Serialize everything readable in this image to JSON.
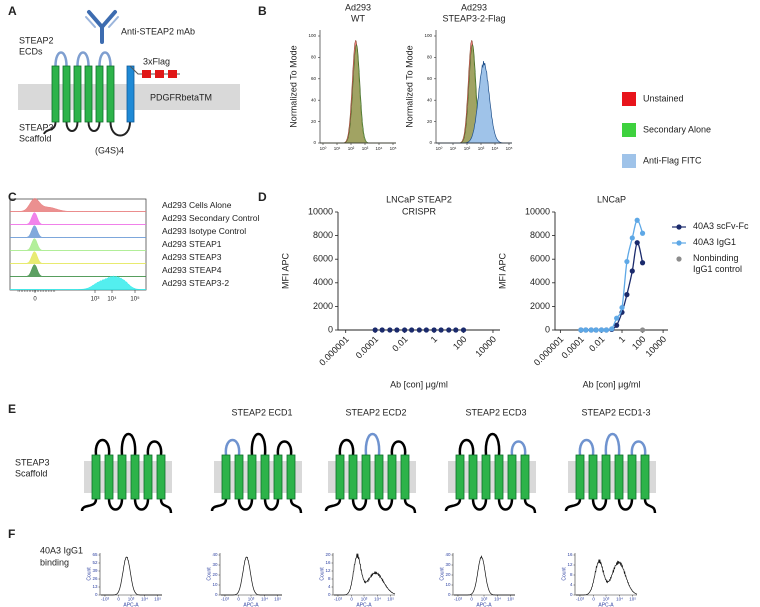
{
  "panels": {
    "A": {
      "letter": "A",
      "antibody": "Anti-STEAP2 mAb",
      "ecds": [
        "STEAP2",
        "ECDs"
      ],
      "flag": "3xFlag",
      "tm": "PDGFRbetaTM",
      "linker": "(G4S)4",
      "scaffold": [
        "STEAP3",
        "Scaffold"
      ]
    },
    "B": {
      "letter": "B",
      "ylabel": "Normalized To Mode",
      "yticks": [
        0,
        20,
        40,
        60,
        80,
        100
      ],
      "xticks": [
        "10⁰",
        "10¹",
        "10²",
        "10³",
        "10⁴",
        "10⁵"
      ],
      "plots": [
        {
          "title": [
            "Ad293",
            "WT"
          ]
        },
        {
          "title": [
            "Ad293",
            "STEAP3-2-Flag"
          ]
        }
      ],
      "legend": [
        {
          "name": "Unstained",
          "color": "#e8141b"
        },
        {
          "name": "Secondary Alone",
          "color": "#3ed13e"
        },
        {
          "name": "Anti-Flag FITC",
          "color": "#9fc3e9"
        }
      ]
    },
    "C": {
      "letter": "C",
      "xticks": [
        "0",
        "10³",
        "10⁴",
        "10⁵"
      ],
      "rows": [
        {
          "name": "Ad293 Cells Alone",
          "color": "#e87d7d"
        },
        {
          "name": "Ad293 Secondary Control",
          "color": "#ee6fe6"
        },
        {
          "name": "Ad293 Isotype Control",
          "color": "#6b9ad6"
        },
        {
          "name": "Ad293 STEAP1",
          "color": "#a6ec8a"
        },
        {
          "name": "Ad293 STEAP3",
          "color": "#e4e85a"
        },
        {
          "name": "Ad293 STEAP4",
          "color": "#3f8f46"
        },
        {
          "name": "Ad293 STEAP3-2",
          "color": "#35ecec"
        }
      ]
    },
    "D": {
      "letter": "D"
    },
    "E": {
      "letter": "E",
      "scaffold": [
        "STEAP3",
        "Scaffold"
      ],
      "constructs": [
        {
          "ecd_colors": [
            "#000000",
            "#000000",
            "#000000"
          ]
        },
        {
          "title": "STEAP2 ECD1",
          "ecd_colors": [
            "#6f93cf",
            "#000000",
            "#000000"
          ]
        },
        {
          "title": "STEAP2 ECD2",
          "ecd_colors": [
            "#000000",
            "#6f93cf",
            "#000000"
          ]
        },
        {
          "title": "STEAP2 ECD3",
          "ecd_colors": [
            "#000000",
            "#000000",
            "#6f93cf"
          ]
        },
        {
          "title": "STEAP2 ECD1-3",
          "ecd_colors": [
            "#6f93cf",
            "#6f93cf",
            "#6f93cf"
          ]
        }
      ]
    },
    "F": {
      "letter": "F",
      "label": [
        "40A3 IgG1",
        "binding"
      ],
      "ylabel": "Count",
      "xlabel": "APC-A",
      "xticks": [
        "-10³",
        "0",
        "10³",
        "10⁴",
        "10⁵"
      ],
      "plots": [
        {
          "yticks": [
            0,
            13,
            26,
            39,
            52,
            65
          ]
        },
        {
          "yticks": [
            0,
            10,
            20,
            30,
            40
          ]
        },
        {
          "yticks": [
            0,
            4,
            8,
            12,
            16,
            20
          ]
        },
        {
          "yticks": [
            0,
            10,
            20,
            30,
            40
          ]
        },
        {
          "yticks": [
            0,
            4,
            8,
            12,
            16
          ]
        }
      ]
    }
  },
  "chart_data": [
    {
      "type": "scatter",
      "title": [
        "LNCaP STEAP2",
        "CRISPR"
      ],
      "xlabel": "Ab [con] μg/ml",
      "ylabel": "MFI APC",
      "log_x": true,
      "xlim": [
        3e-07,
        30000
      ],
      "xticks": [
        1e-06,
        0.0001,
        0.01,
        1,
        100,
        10000
      ],
      "ylim": [
        0,
        10000
      ],
      "yticks": [
        0,
        2000,
        4000,
        6000,
        8000,
        10000
      ],
      "legend": false,
      "series": [
        {
          "color": "#1a2a6c",
          "fit": false,
          "x": [
            0.0001,
            0.0003,
            0.001,
            0.003,
            0.01,
            0.03,
            0.1,
            0.3,
            1,
            3,
            10,
            30,
            100
          ],
          "values": [
            0,
            0,
            0,
            0,
            0,
            0,
            0,
            0,
            0,
            0,
            0,
            0,
            0
          ]
        }
      ]
    },
    {
      "type": "scatter",
      "title": [
        "LNCaP"
      ],
      "xlabel": "Ab [con] μg/ml",
      "ylabel": "MFI APC",
      "log_x": true,
      "xlim": [
        3e-07,
        30000
      ],
      "xticks": [
        1e-06,
        0.0001,
        0.01,
        1,
        100,
        10000
      ],
      "ylim": [
        0,
        10000
      ],
      "yticks": [
        0,
        2000,
        4000,
        6000,
        8000,
        10000
      ],
      "legend": true,
      "series": [
        {
          "name": "40A3 scFv-Fc",
          "color": "#1a2a6c",
          "fit": true,
          "x": [
            0.0001,
            0.0003,
            0.001,
            0.003,
            0.01,
            0.03,
            0.1,
            0.3,
            1,
            3,
            10,
            30,
            100
          ],
          "values": [
            0,
            0,
            0,
            0,
            0,
            0,
            50,
            400,
            1500,
            3000,
            5000,
            7400,
            5700
          ]
        },
        {
          "name": "40A3 IgG1",
          "color": "#5ea8e6",
          "fit": true,
          "x": [
            0.0001,
            0.0003,
            0.001,
            0.003,
            0.01,
            0.03,
            0.1,
            0.3,
            1,
            3,
            10,
            30,
            100
          ],
          "values": [
            0,
            0,
            0,
            0,
            0,
            0,
            100,
            1000,
            1900,
            5800,
            7800,
            9300,
            8200
          ]
        },
        {
          "name": "Nonbinding IgG1 control",
          "color": "#8c8c8c",
          "fit": false,
          "x": [
            100
          ],
          "values": [
            0
          ]
        }
      ]
    }
  ]
}
